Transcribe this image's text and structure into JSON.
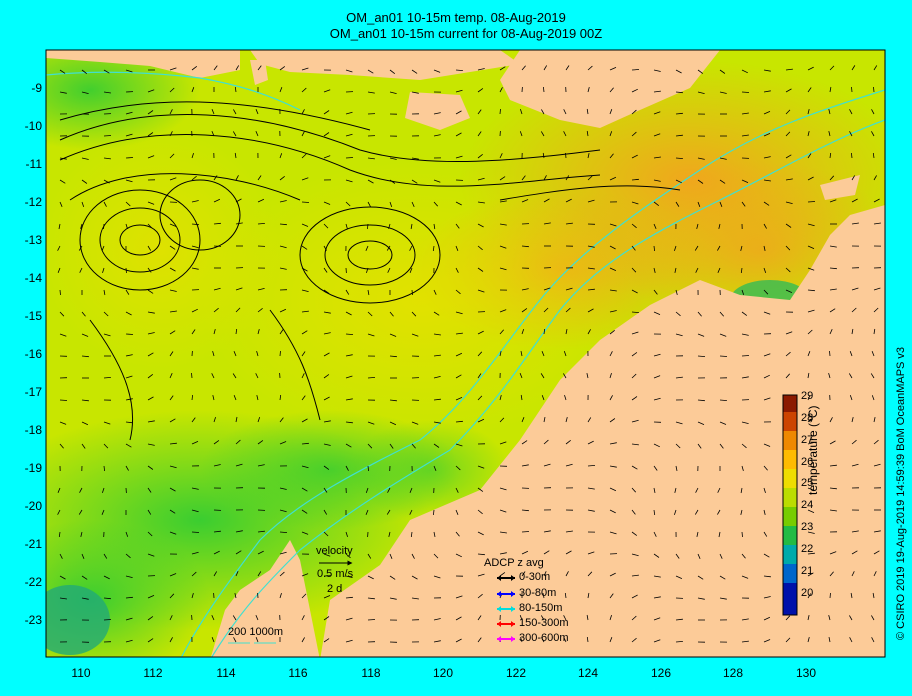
{
  "title": {
    "line1": "OM_an01 10-15m temp. 08-Aug-2019",
    "line2": "OM_an01 10-15m current for 08-Aug-2019 00Z"
  },
  "axes": {
    "y_ticks": [
      "-9",
      "-10",
      "-11",
      "-12",
      "-13",
      "-14",
      "-15",
      "-16",
      "-17",
      "-18",
      "-19",
      "-20",
      "-21",
      "-22",
      "-23"
    ],
    "x_ticks": [
      "110",
      "112",
      "114",
      "116",
      "118",
      "120",
      "122",
      "124",
      "126",
      "128",
      "130"
    ]
  },
  "colorbar": {
    "label": "temperature (°C)",
    "ticks": [
      "29",
      "28",
      "27",
      "26",
      "25",
      "24",
      "23",
      "22",
      "21",
      "20"
    ]
  },
  "velocity_legend": {
    "title": "velocity",
    "speed": "0.5 m/s",
    "duration": "2 d"
  },
  "adcp_legend": {
    "title": "ADCP z avg",
    "items": [
      {
        "label": "0-30m",
        "color": "#000000"
      },
      {
        "label": "30-80m",
        "color": "#0000ff"
      },
      {
        "label": "80-150m",
        "color": "#00dddd"
      },
      {
        "label": "150-300m",
        "color": "#ff0000"
      },
      {
        "label": "300-600m",
        "color": "#ff00ff"
      }
    ]
  },
  "isobath_legend": {
    "label": "200  1000m"
  },
  "credit": "© CSIRO 2019   19-Aug-2019 14:59:39 BoM OceanMAPS v3",
  "colors": {
    "background": "#00ffff",
    "land": "#fccb98",
    "isobath": "#40e0d0"
  }
}
